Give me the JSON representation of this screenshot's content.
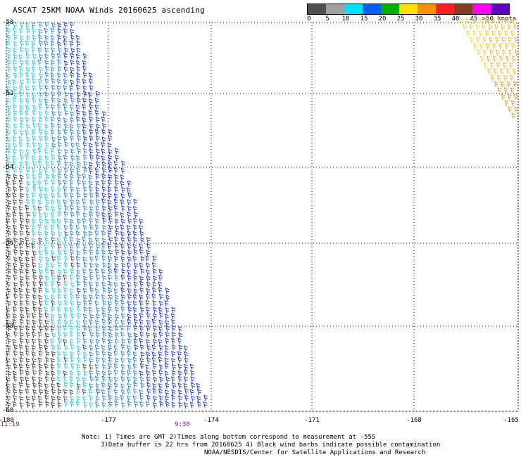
{
  "title": "ASCAT 25KM NOAA Winds 20160625 ascending",
  "legend": {
    "labels": [
      "0",
      "5",
      "10",
      "15",
      "20",
      "25",
      "30",
      "35",
      "40",
      "45",
      ">50 knots"
    ],
    "colors": [
      "#505050",
      "#a0a0a0",
      "#00e0ff",
      "#0080ff",
      "#0000d0",
      "#00c000",
      "#ffff00",
      "#ffb000",
      "#ff6000",
      "#ff0000",
      "#c00000",
      "#804000",
      "#ff00ff",
      "#a000ff",
      "#6000c0"
    ]
  },
  "map": {
    "lat_labels": [
      "-50",
      "-52",
      "-54",
      "-56",
      "-58",
      "-60"
    ],
    "lon_labels": [
      "-180",
      "-177",
      "-174",
      "-171",
      "-168",
      "-165"
    ],
    "time_labels": [
      "11:19",
      "9:38"
    ]
  },
  "notes": {
    "line1": "Note: 1) Times are GMT 2)Times along bottom correspond to measurement at -55S",
    "line2": "3)Data buffer is 22 hrs from 20160625 4) Black wind barbs indicate possible contamination",
    "line3": "NOAA/NESDIS/Center for Satellite Applications and Research"
  }
}
